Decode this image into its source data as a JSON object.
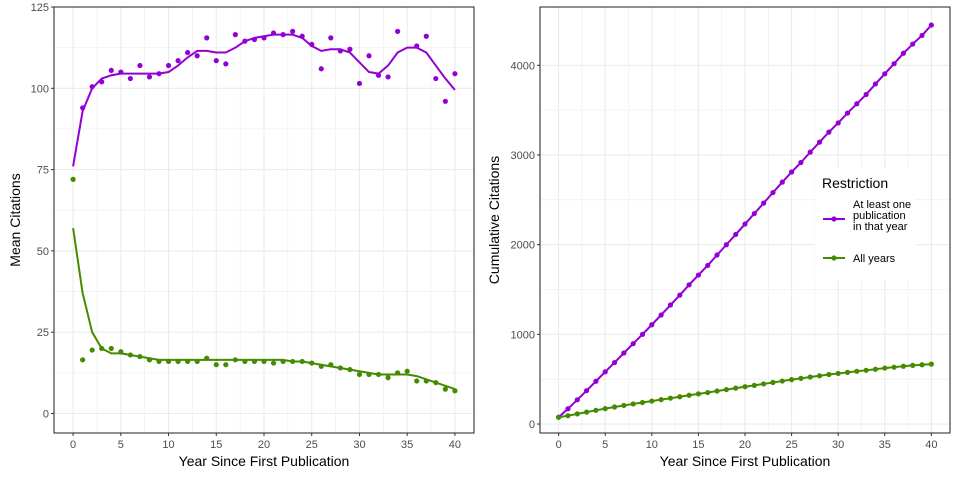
{
  "colors": {
    "at_least_one": "#9400d3",
    "all_years": "#458b00",
    "grid": "#ebebeb",
    "panel_border": "#333333"
  },
  "chart_data": [
    {
      "type": "scatter",
      "xlabel": "Year Since First Publication",
      "ylabel": "Mean Citations",
      "xlim": [
        -2,
        42
      ],
      "ylim": [
        -6,
        125
      ],
      "xticks": [
        0,
        5,
        10,
        15,
        20,
        25,
        30,
        35,
        40
      ],
      "yticks": [
        0,
        25,
        50,
        75,
        100,
        125
      ],
      "smooth": true,
      "grid": true,
      "x": [
        0,
        1,
        2,
        3,
        4,
        5,
        6,
        7,
        8,
        9,
        10,
        11,
        12,
        13,
        14,
        15,
        16,
        17,
        18,
        19,
        20,
        21,
        22,
        23,
        24,
        25,
        26,
        27,
        28,
        29,
        30,
        31,
        32,
        33,
        34,
        35,
        36,
        37,
        38,
        39,
        40
      ],
      "series": [
        {
          "key": "at_least_one",
          "points": [
            [
              1,
              94
            ],
            [
              2,
              100.5
            ],
            [
              3,
              102
            ],
            [
              4,
              105.5
            ],
            [
              5,
              105
            ],
            [
              6,
              103
            ],
            [
              7,
              107
            ],
            [
              8,
              103.5
            ],
            [
              9,
              104.5
            ],
            [
              10,
              107
            ],
            [
              11,
              108.5
            ],
            [
              12,
              111
            ],
            [
              13,
              110
            ],
            [
              14,
              115.5
            ],
            [
              15,
              108.5
            ],
            [
              16,
              107.5
            ],
            [
              17,
              116.5
            ],
            [
              18,
              114.5
            ],
            [
              19,
              115
            ],
            [
              20,
              115.5
            ],
            [
              21,
              117
            ],
            [
              22,
              116.5
            ],
            [
              23,
              117.5
            ],
            [
              24,
              116
            ],
            [
              25,
              113.5
            ],
            [
              26,
              106
            ],
            [
              27,
              115.5
            ],
            [
              28,
              111.5
            ],
            [
              29,
              112
            ],
            [
              30,
              101.5
            ],
            [
              31,
              110
            ],
            [
              32,
              104
            ],
            [
              33,
              103.5
            ],
            [
              34,
              117.5
            ],
            [
              36,
              113
            ],
            [
              37,
              116
            ],
            [
              38,
              103
            ],
            [
              39,
              96
            ],
            [
              40,
              104.5
            ]
          ],
          "smooth_values": [
            76,
            93,
            100,
            103,
            104,
            104.5,
            104.5,
            104.5,
            104.5,
            104.5,
            105,
            107,
            109.5,
            111.5,
            111.5,
            111,
            111,
            112.5,
            114.5,
            115.5,
            116,
            116.5,
            116.5,
            116.5,
            115.5,
            113,
            111.5,
            112,
            112,
            111,
            108,
            105,
            104.5,
            107,
            111,
            112.5,
            112.5,
            111,
            107,
            103,
            99.5
          ]
        },
        {
          "key": "all_years",
          "points": [
            [
              0,
              72
            ],
            [
              1,
              16.5
            ],
            [
              2,
              19.5
            ],
            [
              3,
              20
            ],
            [
              4,
              20
            ],
            [
              5,
              19
            ],
            [
              6,
              18
            ],
            [
              7,
              17.5
            ],
            [
              8,
              16.5
            ],
            [
              9,
              16
            ],
            [
              10,
              16
            ],
            [
              11,
              16
            ],
            [
              12,
              16
            ],
            [
              13,
              16
            ],
            [
              14,
              17
            ],
            [
              15,
              15
            ],
            [
              16,
              15
            ],
            [
              17,
              16.5
            ],
            [
              18,
              16
            ],
            [
              19,
              16
            ],
            [
              20,
              16
            ],
            [
              21,
              15.5
            ],
            [
              22,
              16
            ],
            [
              23,
              16
            ],
            [
              24,
              16
            ],
            [
              25,
              15.5
            ],
            [
              26,
              14.5
            ],
            [
              27,
              15
            ],
            [
              28,
              14
            ],
            [
              29,
              13.5
            ],
            [
              30,
              12
            ],
            [
              31,
              12
            ],
            [
              32,
              12
            ],
            [
              33,
              11
            ],
            [
              34,
              12.5
            ],
            [
              35,
              13
            ],
            [
              36,
              10
            ],
            [
              37,
              10
            ],
            [
              38,
              9.5
            ],
            [
              39,
              7.5
            ],
            [
              40,
              7
            ]
          ],
          "smooth_values": [
            57,
            37,
            25,
            20,
            18.5,
            18.5,
            18,
            17.5,
            17,
            16.5,
            16.5,
            16.5,
            16.5,
            16.5,
            16.5,
            16.5,
            16.5,
            16.5,
            16.5,
            16.5,
            16.5,
            16.5,
            16.5,
            16,
            16,
            15.5,
            15,
            14.5,
            14,
            13.5,
            13,
            12.5,
            12,
            12,
            12,
            12,
            11.5,
            10.5,
            9.5,
            8.5,
            7.5
          ]
        }
      ]
    },
    {
      "type": "line",
      "xlabel": "Year Since First Publication",
      "ylabel": "Cumulative Citations",
      "xlim": [
        -2,
        42
      ],
      "ylim": [
        -100,
        4650
      ],
      "xticks": [
        0,
        5,
        10,
        15,
        20,
        25,
        30,
        35,
        40
      ],
      "yticks": [
        0,
        1000,
        2000,
        3000,
        4000
      ],
      "grid": true,
      "legend_position": "right",
      "legend_title": "Restriction",
      "x": [
        0,
        1,
        2,
        3,
        4,
        5,
        6,
        7,
        8,
        9,
        10,
        11,
        12,
        13,
        14,
        15,
        16,
        17,
        18,
        19,
        20,
        21,
        22,
        23,
        24,
        25,
        26,
        27,
        28,
        29,
        30,
        31,
        32,
        33,
        34,
        35,
        36,
        37,
        38,
        39,
        40
      ],
      "series": [
        {
          "key": "at_least_one",
          "name_lines": [
            "At least one",
            "publication",
            "in that year"
          ],
          "values": [
            76,
            170,
            270,
            372,
            477,
            582,
            685,
            792,
            896,
            1000,
            1107,
            1216,
            1327,
            1437,
            1552,
            1661,
            1768,
            1885,
            1999,
            2114,
            2230,
            2347,
            2463,
            2581,
            2697,
            2810,
            2916,
            3032,
            3143,
            3255,
            3357,
            3467,
            3571,
            3674,
            3792,
            3905,
            4018,
            4134,
            4237,
            4333,
            4449
          ]
        },
        {
          "key": "all_years",
          "name_lines": [
            "All years"
          ],
          "values": [
            76,
            93,
            113,
            133,
            153,
            172,
            190,
            207,
            224,
            240,
            256,
            272,
            288,
            304,
            321,
            336,
            351,
            368,
            384,
            400,
            416,
            431,
            447,
            463,
            479,
            495,
            509,
            524,
            538,
            552,
            564,
            576,
            588,
            599,
            611,
            624,
            634,
            644,
            654,
            661,
            668
          ]
        }
      ]
    }
  ]
}
